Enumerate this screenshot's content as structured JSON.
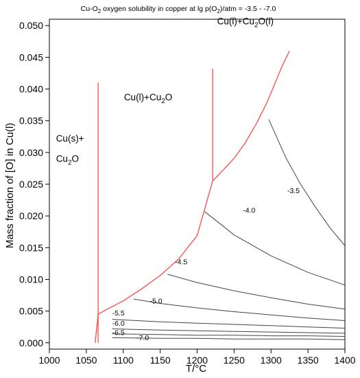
{
  "chart_data": {
    "type": "line",
    "title": {
      "pre": "Cu-O",
      "sub": "2",
      "mid": " oxygen solubility in copper at lg p(O",
      "sub2": "2",
      "post": ")/atm = -3.5 - -7.0"
    },
    "xlabel": "T/°C",
    "ylabel": "Mass fraction of [O] in Cu(l)",
    "xlim": [
      1000,
      1400
    ],
    "ylim": [
      -0.001,
      0.051
    ],
    "x_ticks": [
      1000,
      1050,
      1100,
      1150,
      1200,
      1250,
      1300,
      1350,
      1400
    ],
    "x_tick_labels": [
      "1000",
      "1050",
      "1100",
      "1150",
      "1200",
      "1250",
      "1300",
      "1350",
      "1400"
    ],
    "y_ticks": [
      0.0,
      0.005,
      0.01,
      0.015,
      0.02,
      0.025,
      0.03,
      0.035,
      0.04,
      0.045,
      0.05
    ],
    "y_tick_labels": [
      "0.000",
      "0.005",
      "0.010",
      "0.015",
      "0.020",
      "0.025",
      "0.030",
      "0.035",
      "0.040",
      "0.045",
      "0.050"
    ],
    "grid": false,
    "region_labels": [
      {
        "key": "cu_s_cu2o",
        "lines": [
          [
            {
              "t": "Cu(s)+"
            }
          ],
          [
            {
              "t": "Cu"
            },
            {
              "t": "2",
              "sub": true
            },
            {
              "t": "O"
            }
          ]
        ],
        "x": 1009,
        "y": [
          0.0317,
          0.0285
        ]
      },
      {
        "key": "cu_l_cu2o",
        "lines": [
          [
            {
              "t": "Cu(l)+Cu"
            },
            {
              "t": "2",
              "sub": true
            },
            {
              "t": "O"
            }
          ]
        ],
        "x": 1101,
        "y": [
          0.0382
        ]
      },
      {
        "key": "cu_l_cu2o_l",
        "lines": [
          [
            {
              "t": "Cu(l)+Cu"
            },
            {
              "t": "2",
              "sub": true
            },
            {
              "t": "O(l)"
            }
          ]
        ],
        "x": 1227,
        "y": [
          0.0502
        ]
      }
    ],
    "phase_boundaries": [
      {
        "name": "eutectic-1066",
        "color": "#ff4a4a",
        "x": [
          1066,
          1066
        ],
        "y": [
          0.0,
          0.041
        ]
      },
      {
        "name": "monotectic-1221",
        "color": "#ff4a4a",
        "x": [
          1221,
          1221
        ],
        "y": [
          0.0255,
          0.0432
        ]
      },
      {
        "name": "liquidus",
        "color": "#ff4a4a",
        "x": [
          1062,
          1066,
          1080,
          1100,
          1125,
          1150,
          1175,
          1200,
          1221,
          1235,
          1250,
          1265,
          1280,
          1295,
          1305,
          1315,
          1325
        ],
        "y": [
          0.0,
          0.0045,
          0.0054,
          0.0066,
          0.0085,
          0.0106,
          0.0132,
          0.0169,
          0.0255,
          0.0272,
          0.0291,
          0.0315,
          0.0345,
          0.038,
          0.0408,
          0.0436,
          0.046
        ]
      }
    ],
    "series": [
      {
        "name": "-3.5",
        "color": "#444444",
        "x": [
          1297,
          1320,
          1340,
          1360,
          1380,
          1400
        ],
        "y": [
          0.0352,
          0.0292,
          0.025,
          0.0214,
          0.0181,
          0.0153
        ],
        "label_at": [
          1322,
          0.0236
        ]
      },
      {
        "name": "-4.0",
        "color": "#444444",
        "x": [
          1210,
          1250,
          1300,
          1350,
          1400
        ],
        "y": [
          0.0207,
          0.017,
          0.0137,
          0.0111,
          0.0091
        ],
        "label_at": [
          1262,
          0.0205
        ]
      },
      {
        "name": "-4.5",
        "color": "#444444",
        "x": [
          1160,
          1200,
          1250,
          1300,
          1350,
          1400
        ],
        "y": [
          0.0108,
          0.0095,
          0.0082,
          0.0071,
          0.0061,
          0.0053
        ],
        "label_at": [
          1170,
          0.0124
        ]
      },
      {
        "name": "-5.0",
        "color": "#444444",
        "x": [
          1114,
          1150,
          1200,
          1250,
          1300,
          1350,
          1400
        ],
        "y": [
          0.0069,
          0.0062,
          0.0055,
          0.0049,
          0.0044,
          0.0039,
          0.0035
        ],
        "label_at": [
          1136,
          0.0062
        ]
      },
      {
        "name": "-5.5",
        "color": "#444444",
        "x": [
          1085,
          1150,
          1200,
          1250,
          1300,
          1350,
          1400
        ],
        "y": [
          0.0037,
          0.0033,
          0.0031,
          0.0029,
          0.0027,
          0.0025,
          0.0023
        ],
        "label_at": [
          1085,
          0.0043
        ]
      },
      {
        "name": "-6.0",
        "color": "#444444",
        "x": [
          1085,
          1150,
          1200,
          1250,
          1300,
          1350,
          1400
        ],
        "y": [
          0.0022,
          0.002,
          0.0019,
          0.0018,
          0.0017,
          0.0016,
          0.0015
        ],
        "label_at": [
          1085,
          0.0027
        ]
      },
      {
        "name": "-6.5",
        "color": "#444444",
        "x": [
          1085,
          1150,
          1200,
          1250,
          1300,
          1350,
          1400
        ],
        "y": [
          0.0014,
          0.0013,
          0.0012,
          0.0012,
          0.0011,
          0.0011,
          0.001
        ],
        "label_at": [
          1085,
          0.0012
        ]
      },
      {
        "name": "-7.0",
        "color": "#444444",
        "x": [
          1085,
          1150,
          1200,
          1250,
          1300,
          1350,
          1400
        ],
        "y": [
          0.0008,
          0.0007,
          0.0007,
          0.0006,
          0.0006,
          0.0006,
          0.0005
        ],
        "label_at": [
          1118,
          0.0004
        ]
      }
    ]
  }
}
